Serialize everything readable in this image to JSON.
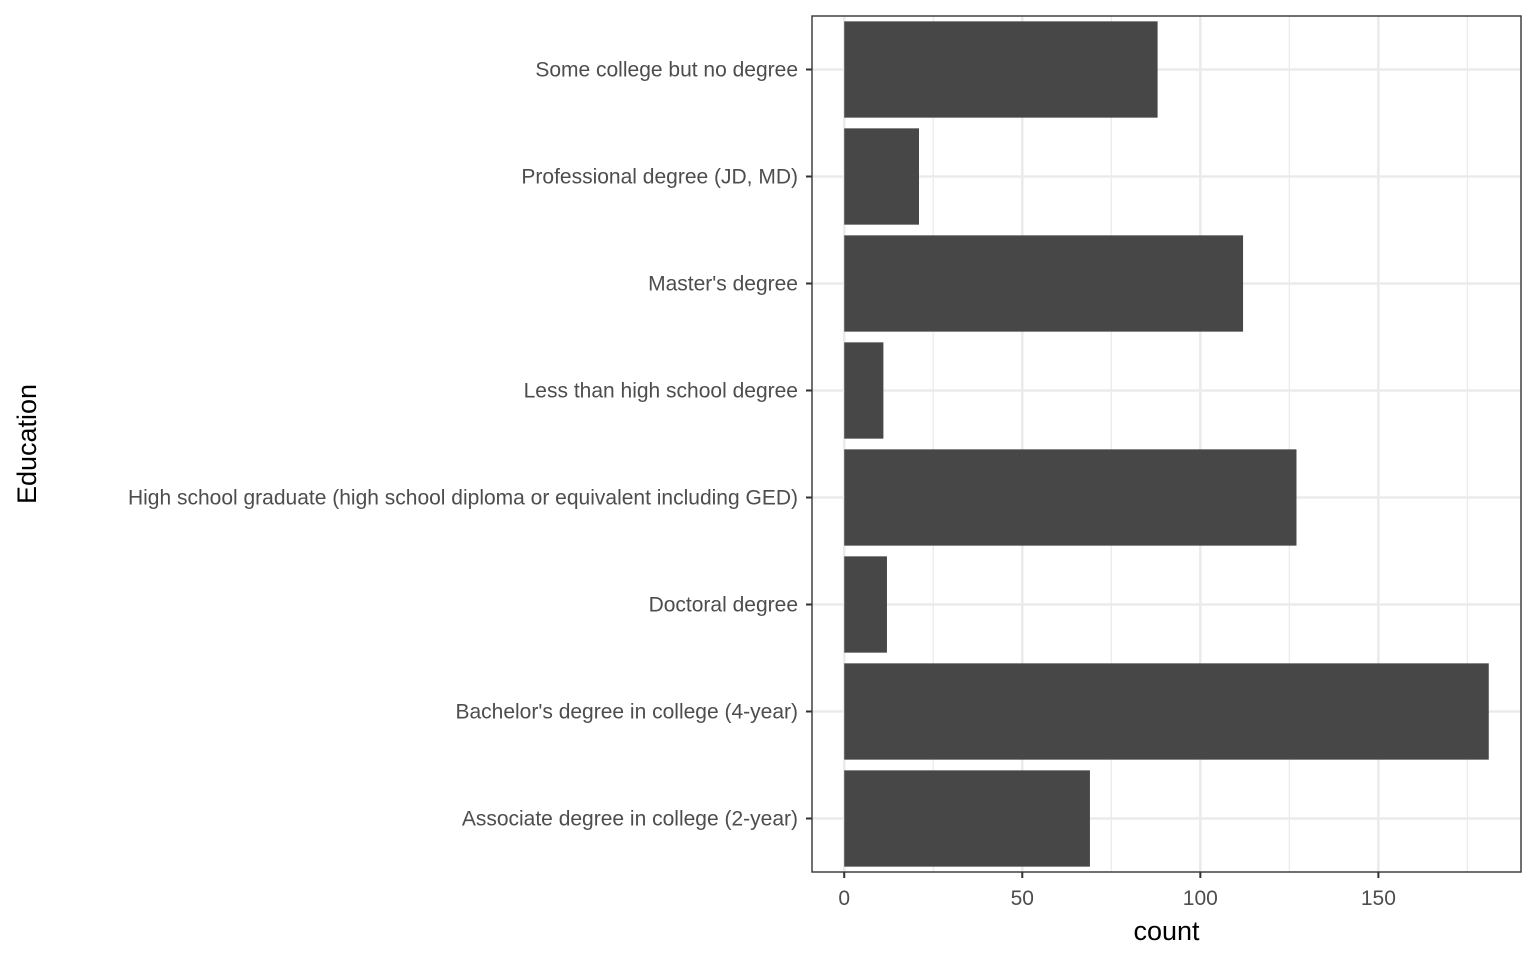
{
  "chart_data": {
    "type": "bar",
    "orientation": "horizontal",
    "categories": [
      "Associate degree in college (2-year)",
      "Bachelor's degree in college (4-year)",
      "Doctoral degree",
      "High school graduate (high school diploma or equivalent including GED)",
      "Less than high school degree",
      "Master's degree",
      "Professional degree (JD, MD)",
      "Some college but no degree"
    ],
    "values": [
      69,
      181,
      12,
      127,
      11,
      112,
      21,
      88
    ],
    "xlabel": "count",
    "ylabel": "Education",
    "xlim": [
      -9.05,
      190.05
    ],
    "xticks": [
      0,
      50,
      100,
      150
    ],
    "grid": true,
    "bar_color": "#474747",
    "grid_color": "#ebebeb",
    "panel_border_color": "#333333"
  }
}
